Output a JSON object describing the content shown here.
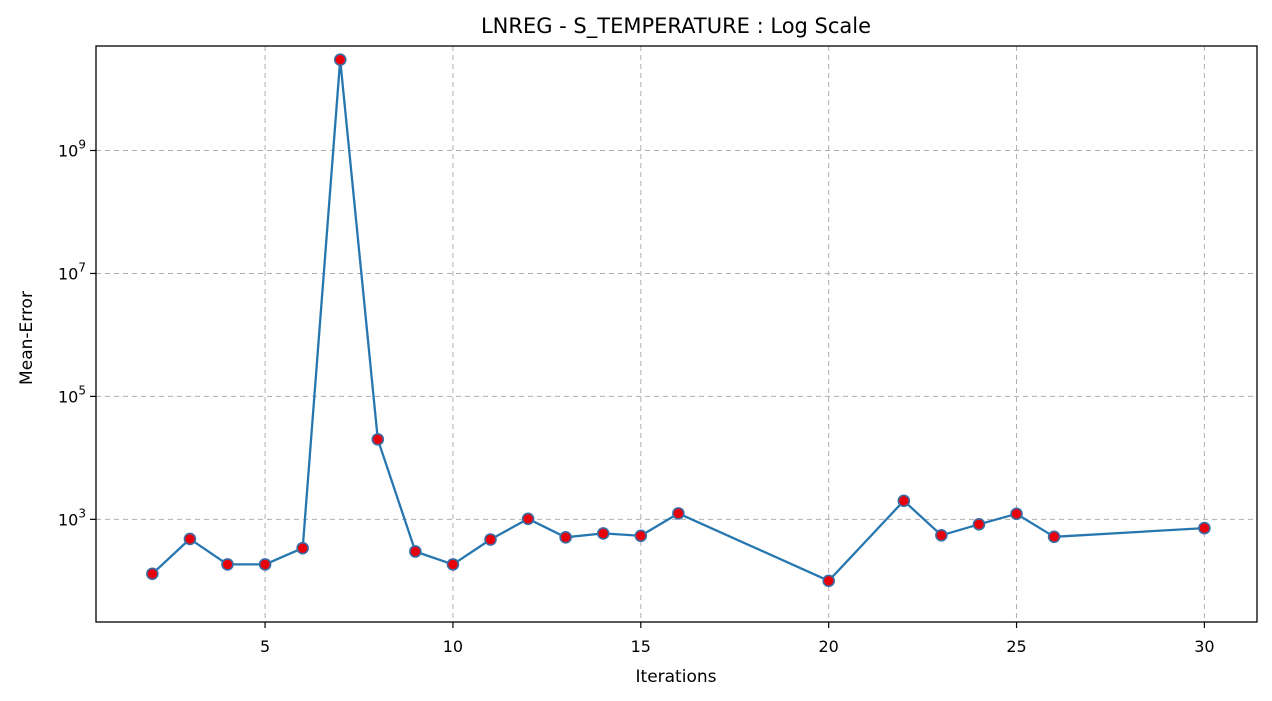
{
  "chart_data": {
    "type": "line",
    "title": "LNREG - S_TEMPERATURE : Log Scale",
    "xlabel": "Iterations",
    "ylabel": "Mean-Error",
    "yscale": "log",
    "xlim": [
      0.5,
      31.4
    ],
    "ylim_log10": [
      1.33,
      10.7
    ],
    "x_ticks": [
      5,
      10,
      15,
      20,
      25,
      30
    ],
    "y_ticks": [
      {
        "exp": 3,
        "base": "10",
        "sup": "3"
      },
      {
        "exp": 5,
        "base": "10",
        "sup": "5"
      },
      {
        "exp": 7,
        "base": "10",
        "sup": "7"
      },
      {
        "exp": 9,
        "base": "10",
        "sup": "9"
      }
    ],
    "grid": true,
    "line_color": "#2677b0",
    "marker_fill": "#e8000b",
    "marker_edge": "#3b6ea5",
    "series": [
      {
        "x": [
          2,
          3,
          4,
          5,
          6,
          7,
          8,
          9,
          10,
          11,
          12,
          13,
          14,
          15,
          16,
          20,
          22,
          23,
          24,
          25,
          26,
          30
        ],
        "y": [
          130,
          480,
          185,
          185,
          340,
          30000000000,
          20000,
          300,
          185,
          470,
          1020,
          510,
          590,
          540,
          1250,
          100,
          2000,
          550,
          830,
          1230,
          520,
          720
        ]
      }
    ]
  }
}
